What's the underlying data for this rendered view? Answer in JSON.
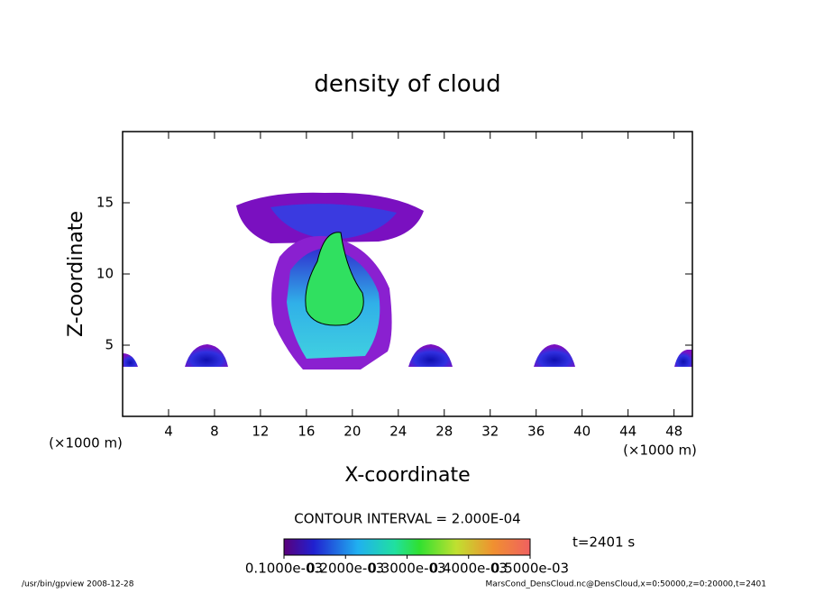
{
  "chart_data": {
    "type": "contour",
    "title": "density of cloud",
    "x_label": "X-coordinate",
    "y_label": "Z-coordinate",
    "x_unit": "(×1000 m)",
    "y_unit": "(×1000 m)",
    "xlim": [
      0,
      49.6
    ],
    "xticks": [
      4,
      8,
      12,
      16,
      20,
      24,
      28,
      32,
      36,
      40,
      44,
      48
    ],
    "ylim": [
      0,
      20
    ],
    "yticks": [
      5,
      10,
      15
    ],
    "contour_interval": "CONTOUR INTERVAL = 2.000E-04",
    "time_label": "t=2401 s",
    "colorbar": {
      "lim": [
        0.0001,
        0.0005
      ],
      "ticks": [
        {
          "value": 0.0001,
          "label": "0.1000e-03"
        },
        {
          "value": 0.0002,
          "label": "0.2000e-03"
        },
        {
          "value": 0.0003,
          "label": "0.3000e-03"
        },
        {
          "value": 0.0004,
          "label": "0.4000e-03"
        },
        {
          "value": 0.0005,
          "label": "0.5000e-03"
        }
      ]
    },
    "footer_left": "/usr/bin/gpview   2008-12-28",
    "footer_right": "MarsCond_DensCloud.nc@DensCloud,x=0:50000,z=0:20000,t=2401"
  }
}
